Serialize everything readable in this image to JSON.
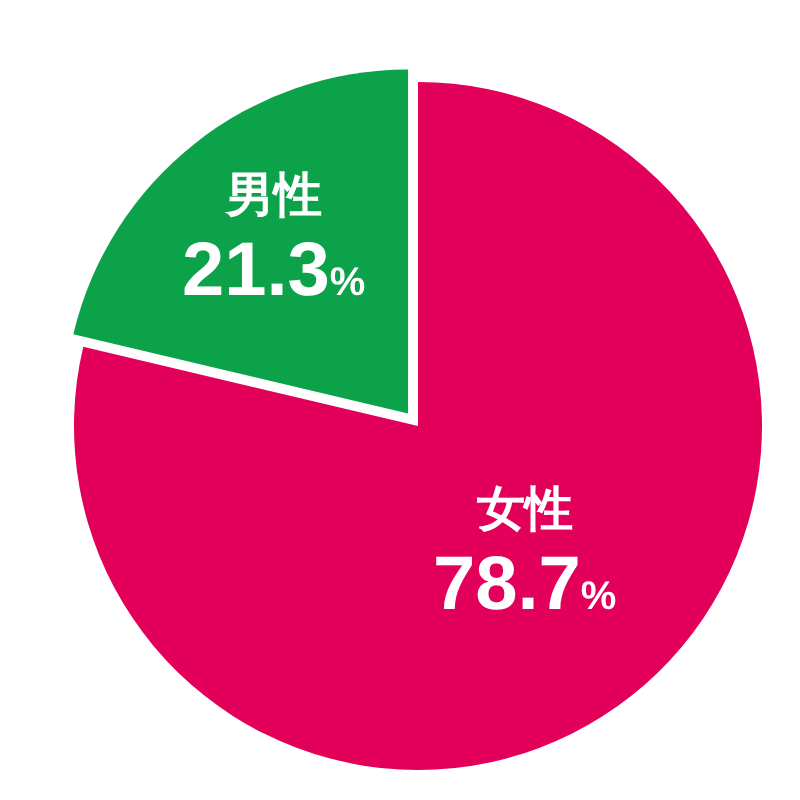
{
  "chart_data": {
    "type": "pie",
    "categories": [
      "女性",
      "男性"
    ],
    "values": [
      78.7,
      21.3
    ],
    "colors": [
      "#e2005a",
      "#0ca24a"
    ],
    "value_labels": [
      "78.7%",
      "21.3%"
    ]
  }
}
